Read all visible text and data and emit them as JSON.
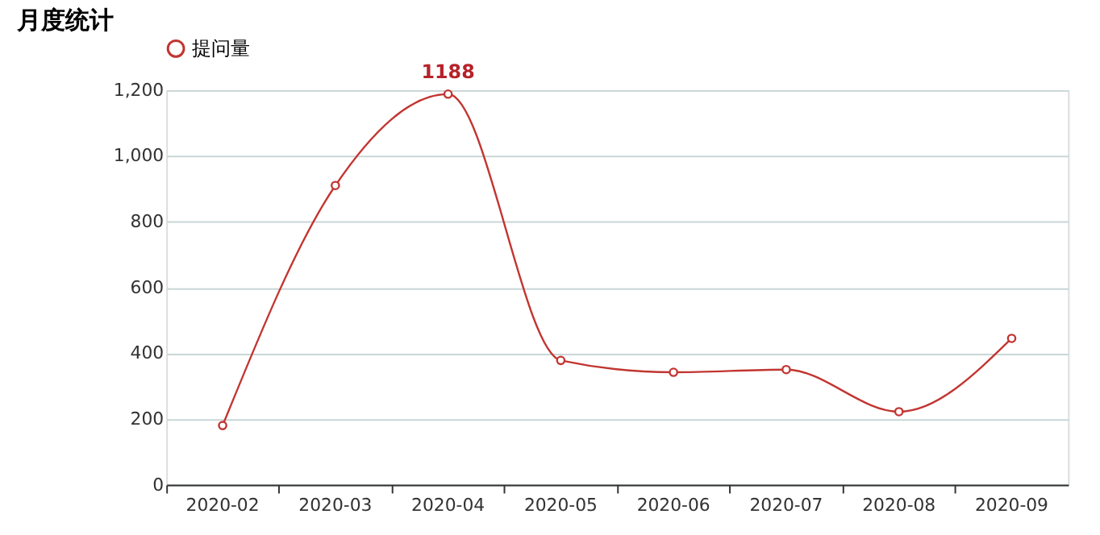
{
  "chart_data": {
    "type": "line",
    "title": "月度统计",
    "categories": [
      "2020-02",
      "2020-03",
      "2020-04",
      "2020-05",
      "2020-06",
      "2020-07",
      "2020-08",
      "2020-09"
    ],
    "series": [
      {
        "name": "提问量",
        "color": "#c23531",
        "values": [
          180,
          910,
          1188,
          378,
          342,
          350,
          222,
          445
        ]
      }
    ],
    "ylim": [
      0,
      1200
    ],
    "yticks": [
      0,
      200,
      400,
      600,
      800,
      {
        "value": 1000,
        "label": "1,000"
      },
      {
        "value": 1200,
        "label": "1,200"
      }
    ],
    "grid": "y",
    "legend": "top",
    "marker": "circle",
    "line_style": "solid",
    "annotations": [
      {
        "text": "1188",
        "x": "2020-04",
        "y": 1188
      }
    ]
  }
}
